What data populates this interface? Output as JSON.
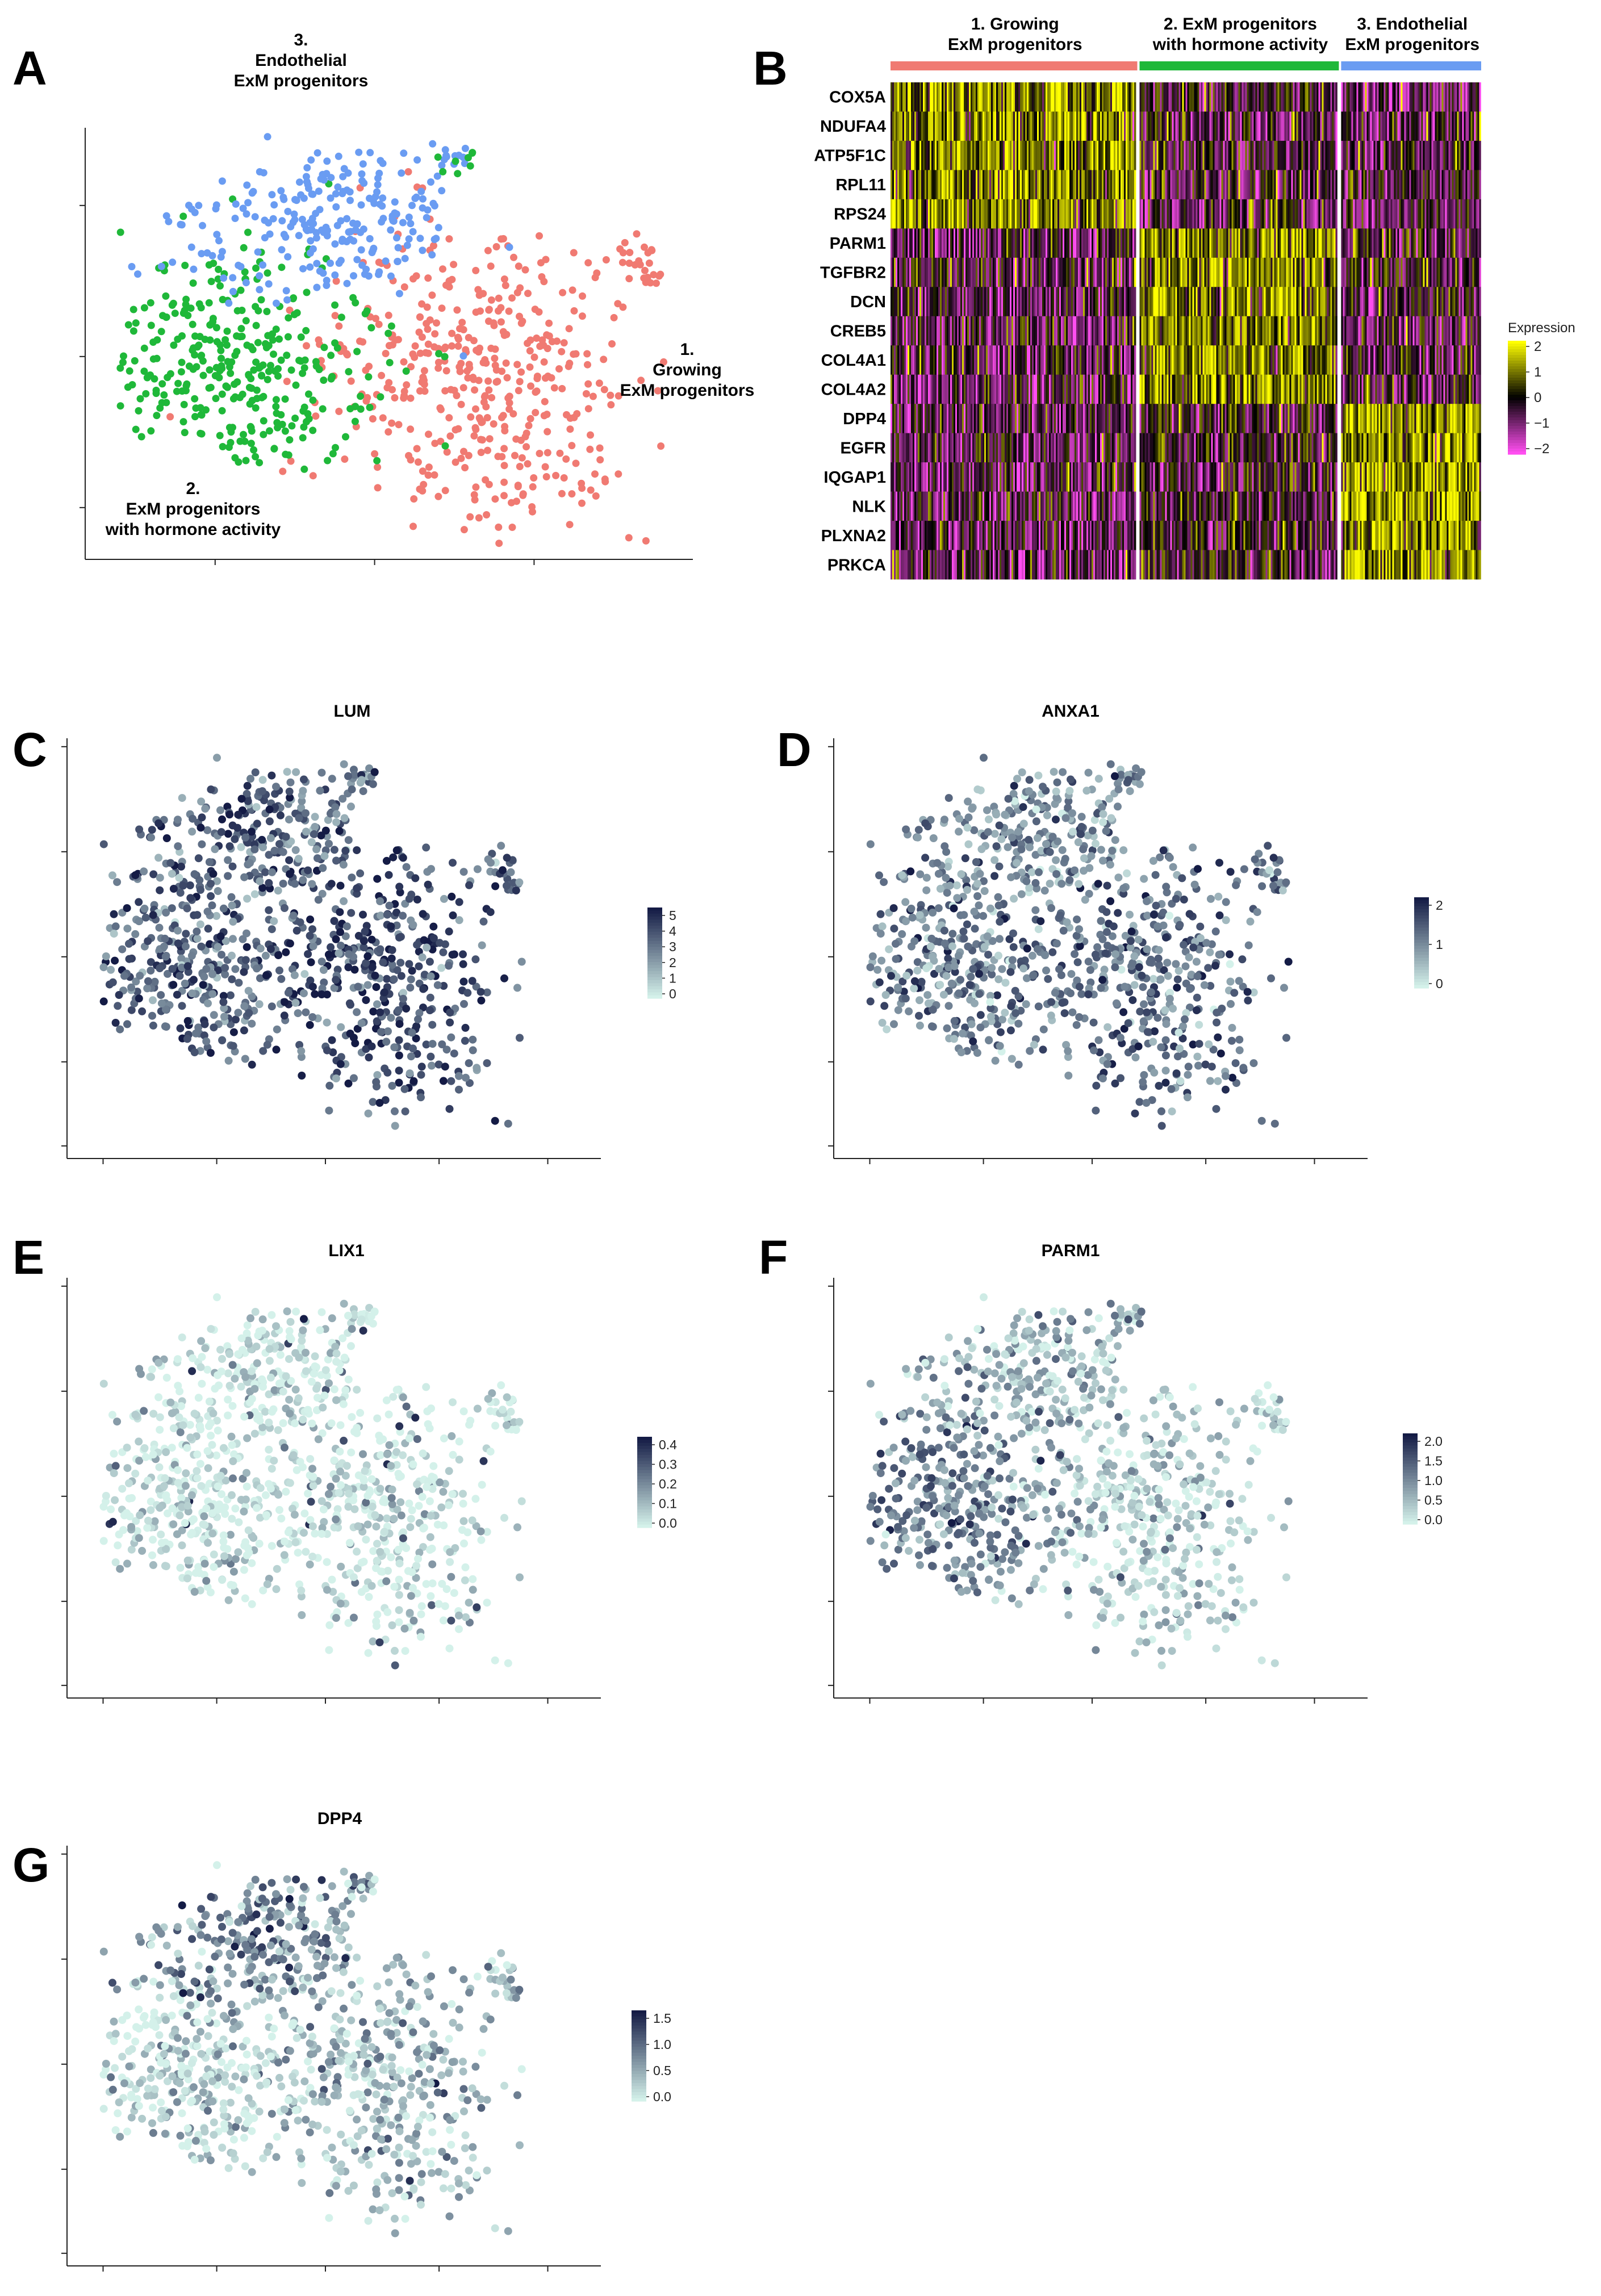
{
  "panel_letters": [
    "A",
    "B",
    "C",
    "D",
    "E",
    "F",
    "G"
  ],
  "chart_data": [
    {
      "id": "A",
      "type": "scatter",
      "title": "",
      "xlabel": "",
      "ylabel": "",
      "clusters": [
        {
          "name": "1. Growing ExM progenitors",
          "label_lines": [
            "1.",
            "Growing",
            "ExM progenitors"
          ],
          "color": "#f07a72"
        },
        {
          "name": "2. ExM progenitors with hormone activity",
          "label_lines": [
            "2.",
            "ExM progenitors",
            "with hormone activity"
          ],
          "color": "#1fb839"
        },
        {
          "name": "3. Endothelial ExM progenitors",
          "label_lines": [
            "3.",
            "Endothelial",
            "ExM progenitors"
          ],
          "color": "#6a9cf2"
        }
      ]
    },
    {
      "id": "B",
      "type": "heatmap",
      "groups": [
        {
          "label_lines": [
            "1. Growing",
            "ExM progenitors"
          ],
          "color": "#f07a72",
          "fraction": 0.42
        },
        {
          "label_lines": [
            "2. ExM progenitors",
            "with hormone activity"
          ],
          "color": "#1fb839",
          "fraction": 0.34
        },
        {
          "label_lines": [
            "3. Endothelial",
            "ExM progenitors"
          ],
          "color": "#6a9cf2",
          "fraction": 0.24
        }
      ],
      "genes": [
        "COX5A",
        "NDUFA4",
        "ATP5F1C",
        "RPL11",
        "RPS24",
        "PARM1",
        "TGFBR2",
        "DCN",
        "CREB5",
        "COL4A1",
        "COL4A2",
        "DPP4",
        "EGFR",
        "IQGAP1",
        "NLK",
        "PLXNA2",
        "PRKCA"
      ],
      "group_bias": [
        [
          0.9,
          -0.3,
          -0.4
        ],
        [
          0.9,
          -0.3,
          -0.4
        ],
        [
          0.9,
          -0.3,
          -0.4
        ],
        [
          0.9,
          -0.3,
          -0.4
        ],
        [
          0.9,
          -0.3,
          -0.4
        ],
        [
          -0.5,
          0.9,
          -0.3
        ],
        [
          -0.5,
          0.9,
          -0.3
        ],
        [
          -0.5,
          0.9,
          -0.3
        ],
        [
          -0.5,
          0.9,
          -0.3
        ],
        [
          -0.5,
          0.9,
          -0.3
        ],
        [
          -0.5,
          0.9,
          -0.3
        ],
        [
          -0.5,
          -0.2,
          1.0
        ],
        [
          -0.5,
          -0.2,
          1.0
        ],
        [
          -0.5,
          -0.2,
          1.0
        ],
        [
          -0.5,
          -0.2,
          1.0
        ],
        [
          -0.5,
          -0.2,
          1.0
        ],
        [
          -0.5,
          -0.2,
          1.0
        ]
      ],
      "legend": {
        "title": "Expression",
        "ticks": [
          "2",
          "1",
          "0",
          "−1",
          "−2"
        ],
        "range": [
          -2,
          2
        ]
      }
    },
    {
      "id": "C",
      "type": "scatter",
      "title": "LUM",
      "legend_ticks": [
        "5",
        "4",
        "3",
        "2",
        "1",
        "0"
      ],
      "max": 5,
      "base": 0.55,
      "bias": [
        0.2,
        0.1,
        0.1
      ]
    },
    {
      "id": "D",
      "type": "scatter",
      "title": "ANXA1",
      "legend_ticks": [
        "2",
        "1",
        "0"
      ],
      "max": 2,
      "base": 0.45,
      "bias": [
        0.1,
        0.1,
        0.0
      ]
    },
    {
      "id": "E",
      "type": "scatter",
      "title": "LIX1",
      "legend_ticks": [
        "0.4",
        "0.3",
        "0.2",
        "0.1",
        "0.0"
      ],
      "max": 0.4,
      "base": 0.04,
      "bias": [
        0.0,
        0.0,
        0.0
      ]
    },
    {
      "id": "F",
      "type": "scatter",
      "title": "PARM1",
      "legend_ticks": [
        "2.0",
        "1.5",
        "1.0",
        "0.5",
        "0.0"
      ],
      "max": 2.0,
      "base": 0.2,
      "bias": [
        -0.05,
        0.3,
        0.05
      ]
    },
    {
      "id": "G",
      "type": "scatter",
      "title": "DPP4",
      "legend_ticks": [
        "1.5",
        "1.0",
        "0.5",
        "0.0"
      ],
      "max": 1.5,
      "base": 0.18,
      "bias": [
        0.05,
        -0.05,
        0.3
      ]
    }
  ],
  "colors": {
    "feature_low": "#d4f1ea",
    "feature_high": "#141b45",
    "heat_low": "#ff4ef0",
    "heat_mid": "#000000",
    "heat_high": "#ffff00"
  }
}
